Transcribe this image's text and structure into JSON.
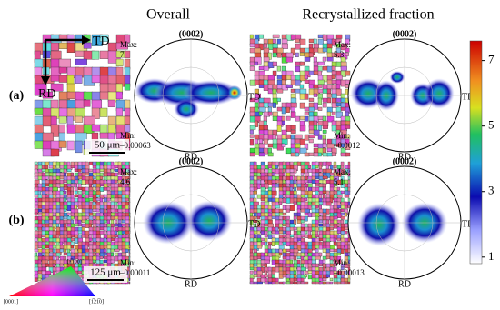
{
  "columns": [
    "Overall",
    "Recrystallized fraction"
  ],
  "rows": [
    {
      "label": "(a)",
      "panels": [
        {
          "scale_bar": "50 μm",
          "pole_figure": {
            "title": "(0002)",
            "max_label": "Max:",
            "max": "7",
            "min_label": "Min:",
            "min": "–0.00063",
            "td": "TD",
            "rd": "RD"
          }
        },
        {
          "pole_figure": {
            "title": "(0002)",
            "max_label": "Max:",
            "max": "5.3",
            "min_label": "Min:",
            "min": "–0.0012",
            "td": "TD",
            "rd": "RD"
          }
        }
      ]
    },
    {
      "label": "(b)",
      "panels": [
        {
          "scale_bar": "125 μm",
          "pole_figure": {
            "title": "(0002)",
            "max_label": "Max:",
            "max": "4.6",
            "min_label": "Min:",
            "min": "–0.00011",
            "td": "TD",
            "rd": "RD"
          }
        },
        {
          "pole_figure": {
            "title": "(0002)",
            "max_label": "Max:",
            "max": "5.1",
            "min_label": "Min:",
            "min": "–0.00013",
            "td": "TD",
            "rd": "RD"
          }
        }
      ]
    }
  ],
  "axes_arrows": {
    "x": "TD",
    "y": "RD"
  },
  "colorbar": {
    "lim": [
      0.8,
      7.6
    ],
    "ticks": [
      1,
      3,
      5,
      7
    ]
  },
  "ipf_legend": {
    "corners": [
      "[0001]",
      "[1̅21̅0]",
      "[1̅100]"
    ]
  }
}
